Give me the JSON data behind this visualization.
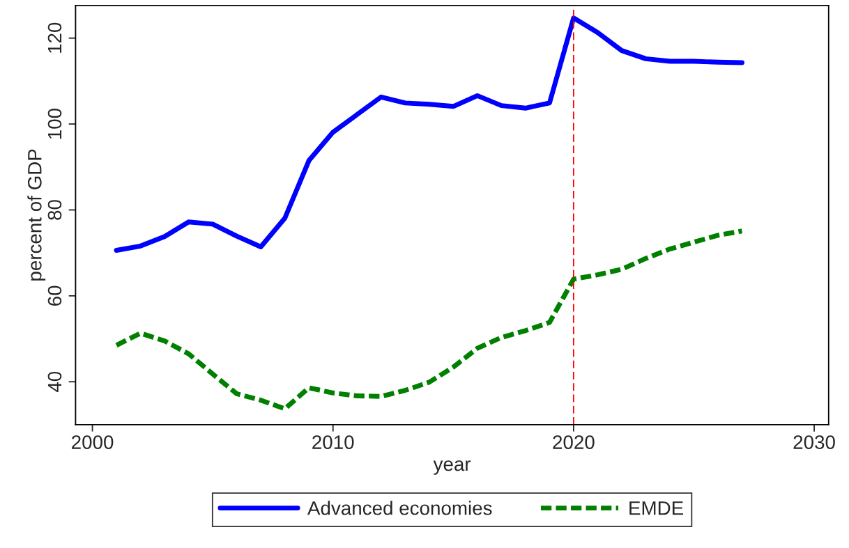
{
  "chart_data": {
    "type": "line",
    "xlabel": "year",
    "ylabel": "percent of GDP",
    "x": [
      2001,
      2002,
      2003,
      2004,
      2005,
      2006,
      2007,
      2008,
      2009,
      2010,
      2011,
      2012,
      2013,
      2014,
      2015,
      2016,
      2017,
      2018,
      2019,
      2020,
      2021,
      2022,
      2023,
      2024,
      2025,
      2026,
      2027
    ],
    "series": [
      {
        "name": "Advanced economies",
        "color": "#0000ff",
        "line_style": "solid",
        "values": [
          70.6,
          71.6,
          73.8,
          77.2,
          76.7,
          73.9,
          71.4,
          78.1,
          91.5,
          98.1,
          102.2,
          106.3,
          104.9,
          104.6,
          104.1,
          106.6,
          104.3,
          103.7,
          104.9,
          124.7,
          121.3,
          117.1,
          115.2,
          114.6,
          114.6,
          114.4,
          114.3
        ]
      },
      {
        "name": "EMDE",
        "color": "#008000",
        "line_style": "dashed",
        "values": [
          48.5,
          51.3,
          49.5,
          46.5,
          41.8,
          37.2,
          35.7,
          33.7,
          38.6,
          37.4,
          36.7,
          36.6,
          38.0,
          39.9,
          43.4,
          47.8,
          50.3,
          51.9,
          53.8,
          63.9,
          64.9,
          66.2,
          68.7,
          70.9,
          72.5,
          74.1,
          75.1
        ]
      }
    ],
    "xlim": [
      1999.3,
      2030.6
    ],
    "xticks": [
      2000,
      2010,
      2020,
      2030
    ],
    "ylim": [
      30,
      127.6
    ],
    "yticks": [
      40,
      60,
      80,
      100,
      120
    ],
    "ref_lines": [
      {
        "axis": "x",
        "value": 2020,
        "color": "#ff0000",
        "line_style": "dashed"
      }
    ],
    "grid": false,
    "legend": "bottom",
    "marker": "none"
  }
}
